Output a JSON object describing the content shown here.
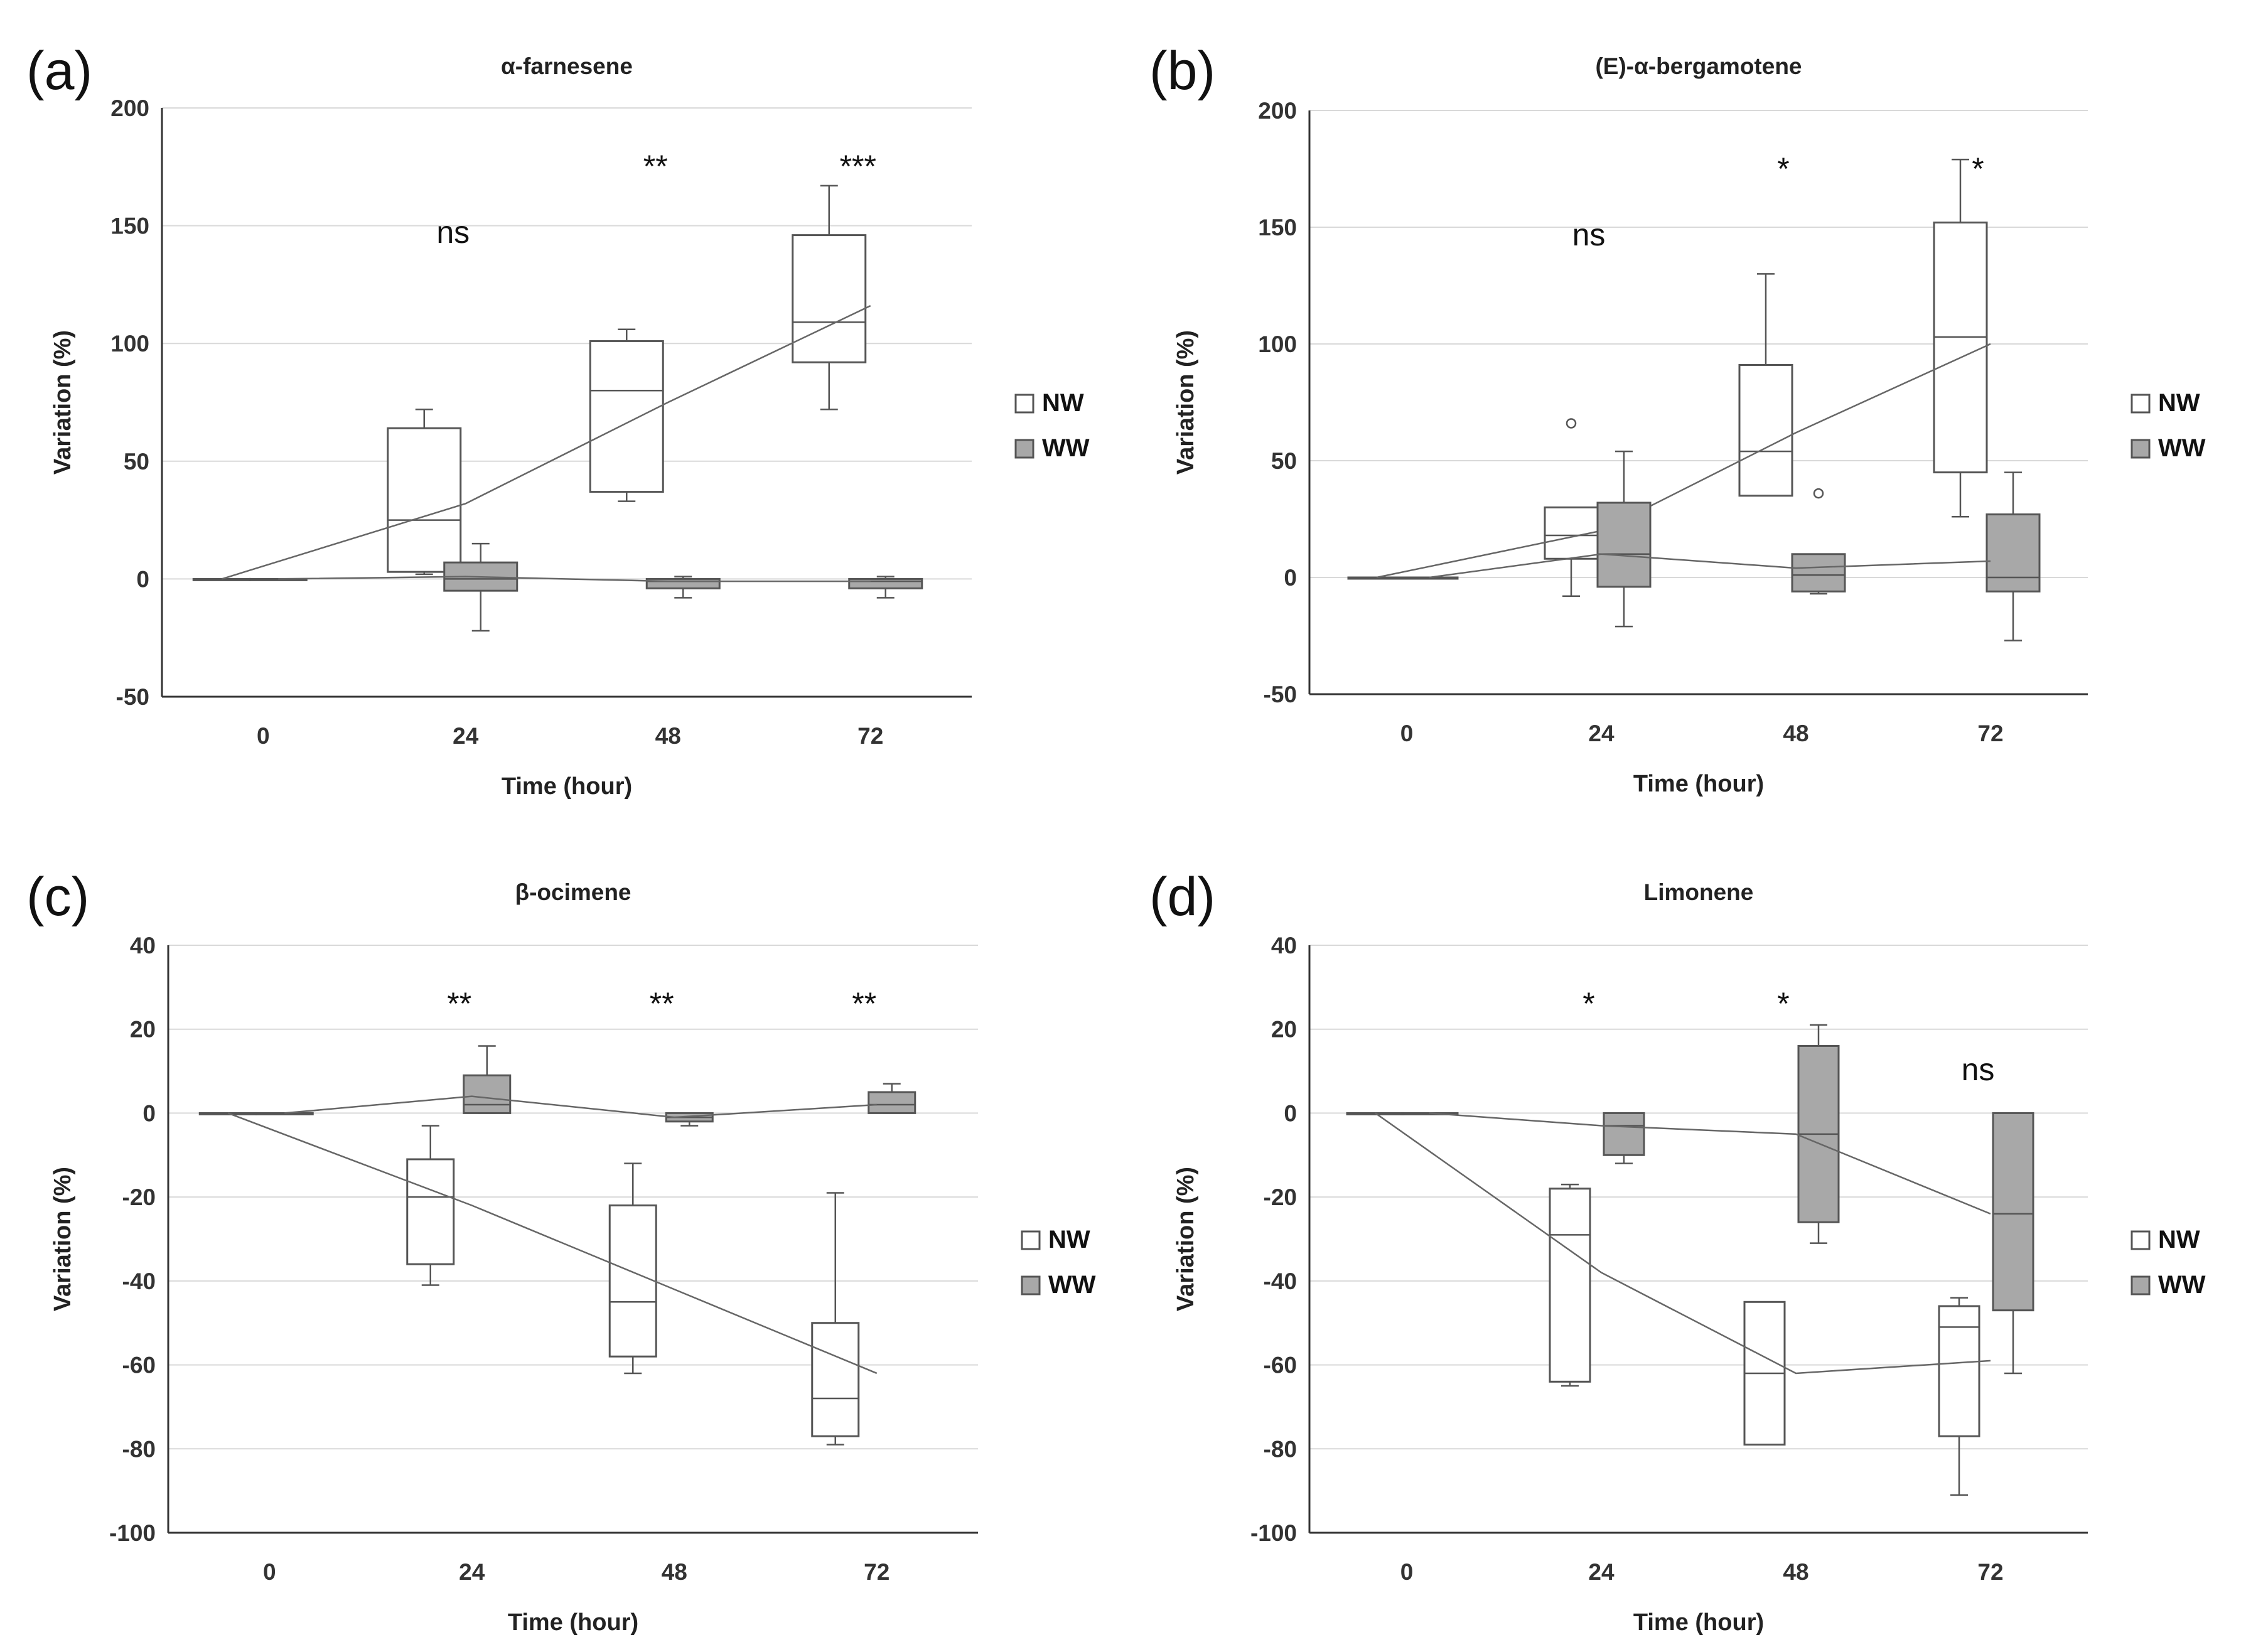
{
  "colors": {
    "nw_fill": "#ffffff",
    "ww_fill": "#a8a8a8",
    "stroke": "#555555",
    "grid": "#d9d9d9",
    "mean_line": "#666666"
  },
  "chart_data": [
    {
      "type": "boxplot",
      "panel_label": "(a)",
      "title": "α-farnesene",
      "xlabel": "Time (hour)",
      "ylabel": "Variation (%)",
      "categories": [
        "0",
        "24",
        "48",
        "72"
      ],
      "ylim": [
        -50,
        200
      ],
      "yticks": [
        -50,
        0,
        50,
        100,
        150,
        200
      ],
      "yticklabels": [
        "-50",
        "0",
        "50",
        "100",
        "150",
        "200"
      ],
      "legend": [
        "NW",
        "WW"
      ],
      "significance": [
        "",
        "ns",
        "**",
        "***"
      ],
      "series": [
        {
          "name": "NW",
          "boxes": [
            {
              "min": 0,
              "q1": 0,
              "median": 0,
              "q3": 0,
              "max": 0
            },
            {
              "min": 2,
              "q1": 3,
              "median": 25,
              "q3": 64,
              "max": 72
            },
            {
              "min": 33,
              "q1": 37,
              "median": 80,
              "q3": 101,
              "max": 106
            },
            {
              "min": 72,
              "q1": 92,
              "median": 109,
              "q3": 146,
              "max": 167
            }
          ],
          "means": [
            0,
            32,
            75,
            116
          ]
        },
        {
          "name": "WW",
          "boxes": [
            {
              "min": 0,
              "q1": 0,
              "median": 0,
              "q3": 0,
              "max": 0
            },
            {
              "min": -22,
              "q1": -5,
              "median": 0,
              "q3": 7,
              "max": 15
            },
            {
              "min": -8,
              "q1": -4,
              "median": -1,
              "q3": 0,
              "max": 1
            },
            {
              "min": -8,
              "q1": -4,
              "median": -1,
              "q3": 0,
              "max": 1
            }
          ],
          "means": [
            0,
            1,
            -1,
            -1
          ]
        }
      ]
    },
    {
      "type": "boxplot",
      "panel_label": "(b)",
      "title": "(E)-α-bergamotene",
      "xlabel": "Time (hour)",
      "ylabel": "Variation (%)",
      "categories": [
        "0",
        "24",
        "48",
        "72"
      ],
      "ylim": [
        -50,
        200
      ],
      "yticks": [
        -50,
        0,
        50,
        100,
        150,
        200
      ],
      "yticklabels": [
        "-50",
        "0",
        "50",
        "100",
        "150",
        "200"
      ],
      "legend": [
        "NW",
        "WW"
      ],
      "significance": [
        "",
        "ns",
        "*",
        "*"
      ],
      "series": [
        {
          "name": "NW",
          "boxes": [
            {
              "min": 0,
              "q1": 0,
              "median": 0,
              "q3": 0,
              "max": 0
            },
            {
              "min": -8,
              "q1": 8,
              "median": 18,
              "q3": 30,
              "max": 30,
              "outliers": [
                66
              ]
            },
            {
              "min": 35,
              "q1": 35,
              "median": 54,
              "q3": 91,
              "max": 130
            },
            {
              "min": 26,
              "q1": 45,
              "median": 103,
              "q3": 152,
              "max": 179
            }
          ],
          "means": [
            0,
            20,
            62,
            100
          ]
        },
        {
          "name": "WW",
          "boxes": [
            {
              "min": 0,
              "q1": 0,
              "median": 0,
              "q3": 0,
              "max": 0
            },
            {
              "min": -21,
              "q1": -4,
              "median": 10,
              "q3": 32,
              "max": 54
            },
            {
              "min": -7,
              "q1": -6,
              "median": 1,
              "q3": 10,
              "max": 10,
              "outliers": [
                36
              ]
            },
            {
              "min": -27,
              "q1": -6,
              "median": 0,
              "q3": 27,
              "max": 45
            }
          ],
          "means": [
            0,
            10,
            4,
            7
          ]
        }
      ]
    },
    {
      "type": "boxplot",
      "panel_label": "(c)",
      "title": "β-ocimene",
      "xlabel": "Time (hour)",
      "ylabel": "Variation (%)",
      "categories": [
        "0",
        "24",
        "48",
        "72"
      ],
      "ylim": [
        -100,
        40
      ],
      "yticks": [
        -100,
        -80,
        -60,
        -40,
        -20,
        0,
        20,
        40
      ],
      "yticklabels": [
        "-100",
        "-80",
        "-60",
        "-40",
        "-20",
        "0",
        "20",
        "40"
      ],
      "legend": [
        "NW",
        "WW"
      ],
      "significance": [
        "",
        "**",
        "**",
        "**"
      ],
      "series": [
        {
          "name": "NW",
          "boxes": [
            {
              "min": 0,
              "q1": 0,
              "median": 0,
              "q3": 0,
              "max": 0
            },
            {
              "min": -41,
              "q1": -36,
              "median": -20,
              "q3": -11,
              "max": -3
            },
            {
              "min": -62,
              "q1": -58,
              "median": -45,
              "q3": -22,
              "max": -12
            },
            {
              "min": -79,
              "q1": -77,
              "median": -68,
              "q3": -50,
              "max": -19
            }
          ],
          "means": [
            0,
            -22,
            -42,
            -62
          ]
        },
        {
          "name": "WW",
          "boxes": [
            {
              "min": 0,
              "q1": 0,
              "median": 0,
              "q3": 0,
              "max": 0
            },
            {
              "min": 0,
              "q1": 0,
              "median": 2,
              "q3": 9,
              "max": 16
            },
            {
              "min": -3,
              "q1": -2,
              "median": -1,
              "q3": 0,
              "max": 0
            },
            {
              "min": 0,
              "q1": 0,
              "median": 2,
              "q3": 5,
              "max": 7
            }
          ],
          "means": [
            0,
            4,
            -1,
            2
          ]
        }
      ]
    },
    {
      "type": "boxplot",
      "panel_label": "(d)",
      "title": "Limonene",
      "xlabel": "Time (hour)",
      "ylabel": "Variation (%)",
      "categories": [
        "0",
        "24",
        "48",
        "72"
      ],
      "ylim": [
        -100,
        40
      ],
      "yticks": [
        -100,
        -80,
        -60,
        -40,
        -20,
        0,
        20,
        40
      ],
      "yticklabels": [
        "-100",
        "-80",
        "-60",
        "-40",
        "-20",
        "0",
        "20",
        "40"
      ],
      "legend": [
        "NW",
        "WW"
      ],
      "significance": [
        "",
        "*",
        "*",
        "ns"
      ],
      "series": [
        {
          "name": "NW",
          "boxes": [
            {
              "min": 0,
              "q1": 0,
              "median": 0,
              "q3": 0,
              "max": 0
            },
            {
              "min": -65,
              "q1": -64,
              "median": -29,
              "q3": -18,
              "max": -17
            },
            {
              "min": -79,
              "q1": -79,
              "median": -62,
              "q3": -45,
              "max": -45
            },
            {
              "min": -91,
              "q1": -77,
              "median": -51,
              "q3": -46,
              "max": -44
            }
          ],
          "means": [
            0,
            -38,
            -62,
            -59
          ]
        },
        {
          "name": "WW",
          "boxes": [
            {
              "min": 0,
              "q1": 0,
              "median": 0,
              "q3": 0,
              "max": 0
            },
            {
              "min": -12,
              "q1": -10,
              "median": -3,
              "q3": 0,
              "max": 0
            },
            {
              "min": -31,
              "q1": -26,
              "median": -5,
              "q3": 16,
              "max": 21
            },
            {
              "min": -62,
              "q1": -47,
              "median": -24,
              "q3": 0,
              "max": 0
            }
          ],
          "means": [
            0,
            -3,
            -5,
            -24
          ]
        }
      ]
    }
  ]
}
